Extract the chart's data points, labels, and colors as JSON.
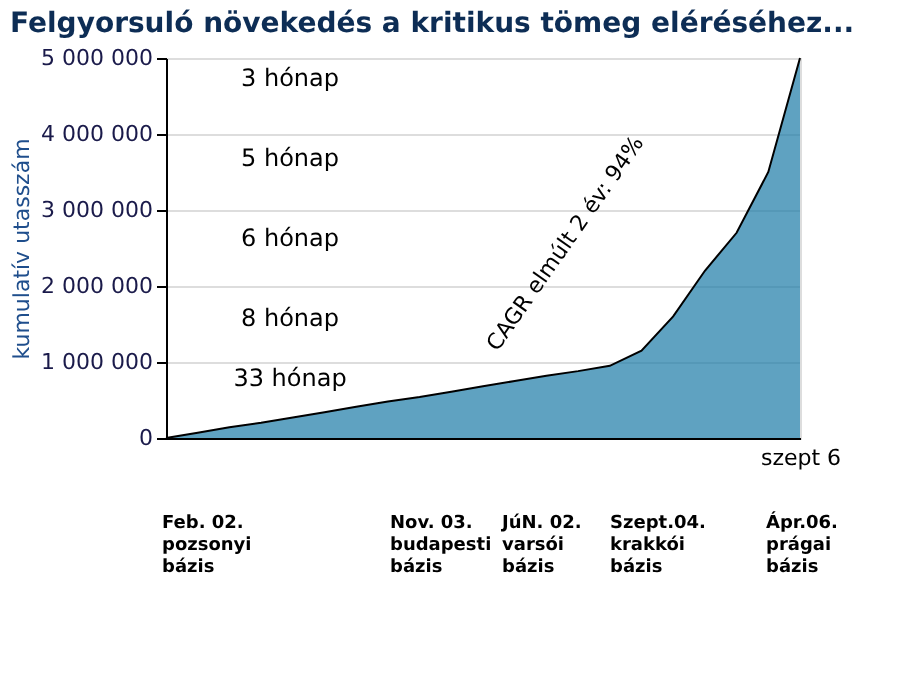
{
  "chart_data": {
    "type": "area",
    "title": "Felgyorsuló növekedés a kritikus tömeg eléréséhez...",
    "ylabel": "kumulatív utasszám",
    "categories": [
      null,
      null,
      null,
      null,
      null,
      null,
      null,
      null,
      null,
      null,
      null,
      null,
      null,
      null,
      null,
      null,
      null,
      null,
      null,
      null,
      "szept 6"
    ],
    "series": [
      {
        "color": "#1b7aa6",
        "values": [
          0,
          70000,
          140000,
          200000,
          270000,
          340000,
          410000,
          480000,
          540000,
          610000,
          680000,
          750000,
          820000,
          880000,
          950000,
          1150000,
          1600000,
          2200000,
          2700000,
          3500000,
          5000000
        ]
      }
    ],
    "ylim": [
      0,
      5000000
    ],
    "yticks": [
      {
        "value": 0,
        "label": "0"
      },
      {
        "value": 1000000,
        "label": "1 000 000"
      },
      {
        "value": 2000000,
        "label": "2 000 000"
      },
      {
        "value": 3000000,
        "label": "3 000 000"
      },
      {
        "value": 4000000,
        "label": "4 000 000"
      },
      {
        "value": 5000000,
        "label": "5 000 000"
      }
    ],
    "grid": "y",
    "annotations": [
      "3 hónap",
      "5 hónap",
      "6 hónap",
      "8 hónap",
      "33 hónap",
      "CAGR elmúlt 2 év: 94%",
      "Feb. 02.\npozsonyi\nbázis",
      "Nov. 03.\nbudapesti\nbázis",
      "JúN. 02.\nvarsói\nbázis",
      "Szept.04.\nkrakkói\nbázis",
      "Ápr.06.\nprágai\nbázis"
    ]
  }
}
